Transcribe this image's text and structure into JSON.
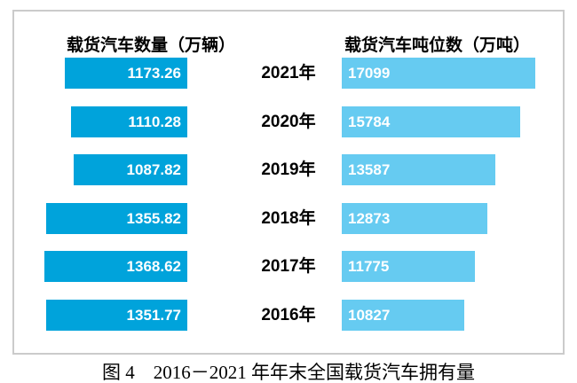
{
  "figure": {
    "caption": "图 4　2016－2021 年年末全国载货汽车拥有量"
  },
  "chart_data": {
    "type": "bar",
    "subtype": "bidirectional-tornado",
    "title": "图 4　2016－2021 年年末全国载货汽车拥有量",
    "left_header": "载货汽车数量（万辆）",
    "right_header": "载货汽车吨位数（万吨）",
    "categories": [
      "2021年",
      "2020年",
      "2019年",
      "2018年",
      "2017年",
      "2016年"
    ],
    "series": [
      {
        "name": "载货汽车数量（万辆）",
        "side": "left",
        "values": [
          1173.26,
          1110.28,
          1087.82,
          1355.82,
          1368.62,
          1351.77
        ],
        "value_labels": [
          "1173.26",
          "1110.28",
          "1087.82",
          "1355.82",
          "1368.62",
          "1351.77"
        ]
      },
      {
        "name": "载货汽车吨位数（万吨）",
        "side": "right",
        "values": [
          17099,
          15784,
          13587,
          12873,
          11775,
          10827
        ],
        "value_labels": [
          "17099",
          "15784",
          "13587",
          "12873",
          "11775",
          "10827"
        ]
      }
    ],
    "layout_hints": {
      "legend": "none",
      "grid": false,
      "value_labels_inside_bars": true,
      "left_bars_right_aligned": true,
      "right_bars_left_aligned": true
    },
    "colors": {
      "left_bar": "#00A3DB",
      "right_bar": "#66CBF1",
      "value_text": "#ffffff",
      "header_text": "#000000",
      "frame_border": "#cbcbcb",
      "background": "#ffffff"
    }
  }
}
